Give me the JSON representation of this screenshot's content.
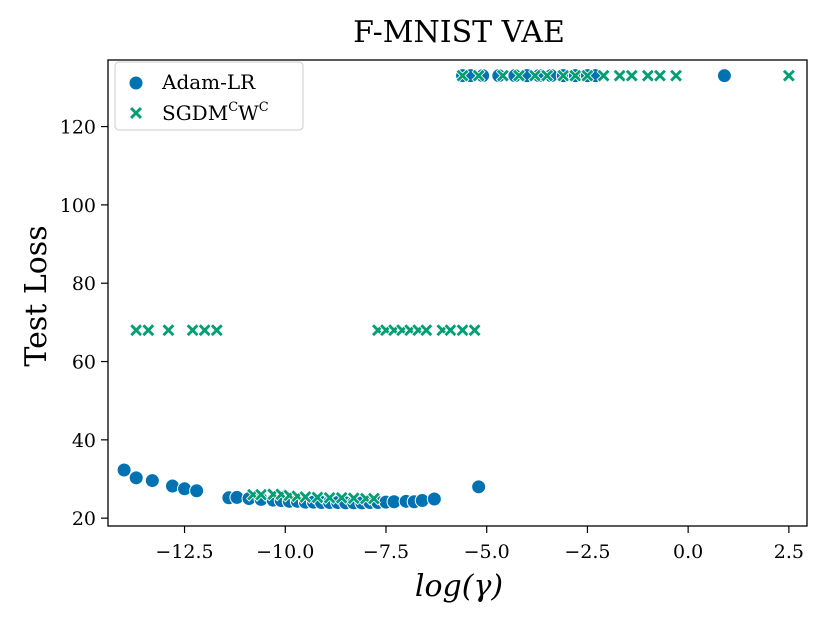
{
  "chart_data": {
    "type": "scatter",
    "title": "F-MNIST VAE",
    "xlabel": "log(γ)",
    "ylabel": "Test Loss",
    "xlim": [
      -14.4,
      2.95
    ],
    "ylim": [
      18,
      137
    ],
    "xticks": [
      -12.5,
      -10.0,
      -7.5,
      -5.0,
      -2.5,
      0.0,
      2.5
    ],
    "xtick_labels": [
      "−12.5",
      "−10.0",
      "−7.5",
      "−5.0",
      "−2.5",
      "0.0",
      "2.5"
    ],
    "yticks": [
      20,
      40,
      60,
      80,
      100,
      120
    ],
    "ytick_labels": [
      "20",
      "40",
      "60",
      "80",
      "100",
      "120"
    ],
    "legend_position": "top-left",
    "series": [
      {
        "name": "Adam-LR",
        "legend_base": "Adam-LR",
        "marker": "circle",
        "color": "#0072b2",
        "points": [
          [
            -14.0,
            32.3
          ],
          [
            -13.7,
            30.3
          ],
          [
            -13.3,
            29.6
          ],
          [
            -12.8,
            28.2
          ],
          [
            -12.5,
            27.5
          ],
          [
            -12.2,
            27.0
          ],
          [
            -11.4,
            25.2
          ],
          [
            -11.2,
            25.3
          ],
          [
            -10.9,
            25.0
          ],
          [
            -10.6,
            24.8
          ],
          [
            -10.3,
            24.6
          ],
          [
            -10.1,
            24.5
          ],
          [
            -9.9,
            24.3
          ],
          [
            -9.7,
            24.3
          ],
          [
            -9.5,
            24.1
          ],
          [
            -9.3,
            24.1
          ],
          [
            -9.1,
            24.0
          ],
          [
            -8.9,
            24.0
          ],
          [
            -8.7,
            24.0
          ],
          [
            -8.5,
            23.9
          ],
          [
            -8.3,
            23.9
          ],
          [
            -8.1,
            23.9
          ],
          [
            -7.9,
            24.0
          ],
          [
            -7.7,
            24.0
          ],
          [
            -7.5,
            24.1
          ],
          [
            -7.3,
            24.2
          ],
          [
            -7.0,
            24.3
          ],
          [
            -6.8,
            24.2
          ],
          [
            -6.6,
            24.5
          ],
          [
            -6.3,
            24.9
          ],
          [
            -5.2,
            28.0
          ],
          [
            -5.6,
            133
          ],
          [
            -5.4,
            133
          ],
          [
            -5.1,
            133
          ],
          [
            -4.7,
            133
          ],
          [
            -4.3,
            133
          ],
          [
            -4.0,
            133
          ],
          [
            -3.7,
            133
          ],
          [
            -3.4,
            133
          ],
          [
            -3.1,
            133
          ],
          [
            -2.8,
            133
          ],
          [
            -2.5,
            133
          ],
          [
            -2.3,
            133
          ],
          [
            0.9,
            133
          ]
        ]
      },
      {
        "name": "SGDM^C W^C",
        "legend_base": "SGDM",
        "legend_sup1": "C",
        "legend_mid": "W",
        "legend_sup2": "C",
        "marker": "x",
        "color": "#009e73",
        "points": [
          [
            -13.7,
            68
          ],
          [
            -13.4,
            68
          ],
          [
            -12.9,
            68
          ],
          [
            -12.3,
            68
          ],
          [
            -12.0,
            68
          ],
          [
            -11.7,
            68
          ],
          [
            -10.8,
            26
          ],
          [
            -10.6,
            26
          ],
          [
            -10.3,
            26.1
          ],
          [
            -10.1,
            26.1
          ],
          [
            -9.9,
            25.8
          ],
          [
            -9.7,
            25.6
          ],
          [
            -9.5,
            25.4
          ],
          [
            -9.2,
            25.3
          ],
          [
            -8.9,
            25.2
          ],
          [
            -8.6,
            25.2
          ],
          [
            -8.3,
            25.1
          ],
          [
            -8.0,
            25.0
          ],
          [
            -7.8,
            25.0
          ],
          [
            -7.7,
            68
          ],
          [
            -7.5,
            68
          ],
          [
            -7.3,
            68
          ],
          [
            -7.1,
            68
          ],
          [
            -6.9,
            68
          ],
          [
            -6.7,
            68
          ],
          [
            -6.5,
            68
          ],
          [
            -6.1,
            68
          ],
          [
            -5.9,
            68
          ],
          [
            -5.6,
            68
          ],
          [
            -5.3,
            68
          ],
          [
            -5.6,
            133
          ],
          [
            -5.2,
            133
          ],
          [
            -4.6,
            133
          ],
          [
            -4.2,
            133
          ],
          [
            -3.8,
            133
          ],
          [
            -3.5,
            133
          ],
          [
            -3.1,
            133
          ],
          [
            -2.8,
            133
          ],
          [
            -2.5,
            133
          ],
          [
            -2.1,
            133
          ],
          [
            -1.7,
            133
          ],
          [
            -1.4,
            133
          ],
          [
            -1.0,
            133
          ],
          [
            -0.7,
            133
          ],
          [
            -0.3,
            133
          ],
          [
            2.5,
            133
          ]
        ]
      }
    ]
  }
}
